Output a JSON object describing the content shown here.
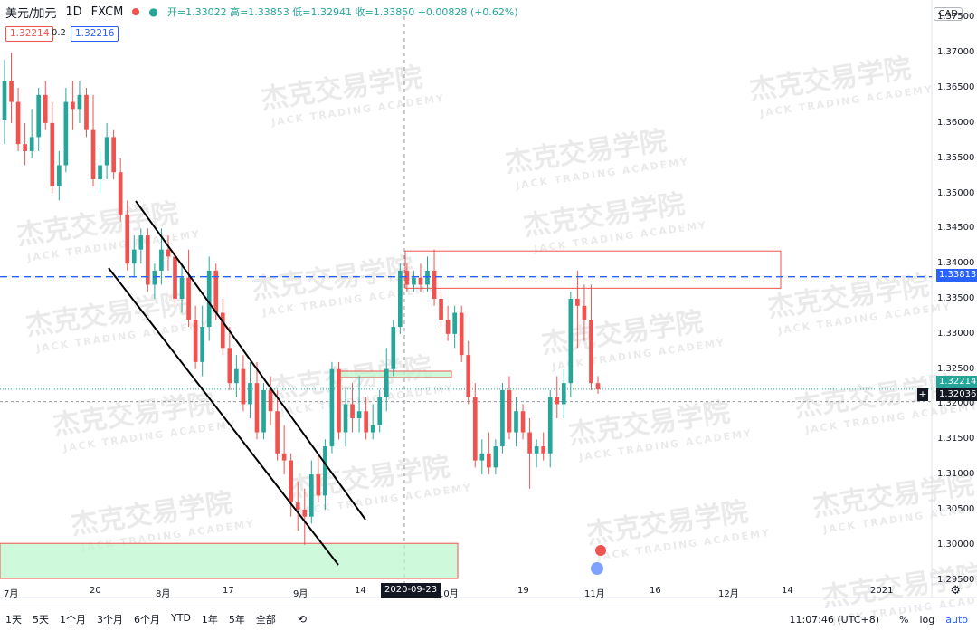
{
  "symbol": {
    "name": "美元/加元",
    "interval": "1D",
    "source": "FXCM",
    "ohlc_text": "开=1.33022 高=1.33853 低=1.32941 收=1.33850 +0.00828 (+0.62%)",
    "bid": "1.32214",
    "spread": "0.2",
    "ask": "1.32216",
    "currency": "CAD"
  },
  "price_axis": {
    "ticks": [
      "1.37500",
      "1.37000",
      "1.36500",
      "1.36000",
      "1.35500",
      "1.35000",
      "1.34500",
      "1.34000",
      "1.33500",
      "1.33000",
      "1.32500",
      "1.32000",
      "1.31500",
      "1.31000",
      "1.30500",
      "1.30000",
      "1.29500"
    ],
    "tag_resistance": "1.33813",
    "tag_last": "1.32214",
    "tag_cursor": "1.32036",
    "cursor_plus": "+"
  },
  "time_axis": {
    "ticks": [
      "7月",
      "20",
      "8月",
      "17",
      "9月",
      "14",
      "10月",
      "19",
      "11月",
      "16",
      "12月",
      "14",
      "2021"
    ],
    "date_tag": "2020-09-23"
  },
  "watermark": {
    "cn": "杰克交易学院",
    "en": "JACK TRADING ACADEMY"
  },
  "bottom_bar": {
    "timeframes": [
      "1天",
      "5天",
      "1个月",
      "3个月",
      "6个月",
      "YTD",
      "1年",
      "5年",
      "全部"
    ],
    "time": "11:07:46 (UTC+8)",
    "percent": "%",
    "log": "log",
    "auto": "auto"
  },
  "colors": {
    "up": "#26a69a",
    "down": "#ef5350",
    "resistance_line": "#2962ff",
    "zone_green": "#b9f6ca",
    "zone_red": "#ef5350"
  },
  "icons": {
    "settings": "gear-icon",
    "compare": "compare-icon",
    "status_dot": "red-dot-icon",
    "goto": "goto-icon"
  },
  "chart_data": {
    "type": "candlestick",
    "title": "美元/加元 1D FXCM",
    "ylim": [
      1.2925,
      1.3775
    ],
    "x_ticks": [
      "7月",
      "20",
      "8月",
      "17",
      "9月",
      "14",
      "10月",
      "19",
      "11月",
      "16",
      "12月",
      "14",
      "2021"
    ],
    "y_ticks": [
      1.375,
      1.37,
      1.365,
      1.36,
      1.355,
      1.35,
      1.345,
      1.34,
      1.335,
      1.33,
      1.325,
      1.32,
      1.315,
      1.31,
      1.305,
      1.3,
      1.295
    ],
    "horizontal_line": 1.33813,
    "last_price": 1.32214,
    "cursor_price": 1.32036,
    "zones": [
      {
        "type": "resistance",
        "top": 1.3418,
        "bottom": 1.3365
      },
      {
        "type": "support",
        "top": 1.3247,
        "bottom": 1.3238
      },
      {
        "type": "support",
        "top": 1.3002,
        "bottom": 1.2952
      }
    ],
    "candles": [
      {
        "o": 1.3605,
        "h": 1.369,
        "l": 1.357,
        "c": 1.366
      },
      {
        "o": 1.366,
        "h": 1.37,
        "l": 1.36,
        "c": 1.363
      },
      {
        "o": 1.363,
        "h": 1.365,
        "l": 1.356,
        "c": 1.357
      },
      {
        "o": 1.357,
        "h": 1.36,
        "l": 1.354,
        "c": 1.356
      },
      {
        "o": 1.356,
        "h": 1.362,
        "l": 1.355,
        "c": 1.358
      },
      {
        "o": 1.358,
        "h": 1.365,
        "l": 1.356,
        "c": 1.364
      },
      {
        "o": 1.364,
        "h": 1.366,
        "l": 1.359,
        "c": 1.36
      },
      {
        "o": 1.36,
        "h": 1.363,
        "l": 1.35,
        "c": 1.351
      },
      {
        "o": 1.351,
        "h": 1.356,
        "l": 1.349,
        "c": 1.354
      },
      {
        "o": 1.354,
        "h": 1.365,
        "l": 1.353,
        "c": 1.363
      },
      {
        "o": 1.363,
        "h": 1.366,
        "l": 1.359,
        "c": 1.362
      },
      {
        "o": 1.362,
        "h": 1.366,
        "l": 1.36,
        "c": 1.364
      },
      {
        "o": 1.364,
        "h": 1.365,
        "l": 1.358,
        "c": 1.359
      },
      {
        "o": 1.359,
        "h": 1.364,
        "l": 1.351,
        "c": 1.352
      },
      {
        "o": 1.352,
        "h": 1.356,
        "l": 1.35,
        "c": 1.354
      },
      {
        "o": 1.354,
        "h": 1.36,
        "l": 1.352,
        "c": 1.358
      },
      {
        "o": 1.358,
        "h": 1.359,
        "l": 1.352,
        "c": 1.353
      },
      {
        "o": 1.353,
        "h": 1.355,
        "l": 1.346,
        "c": 1.347
      },
      {
        "o": 1.347,
        "h": 1.349,
        "l": 1.339,
        "c": 1.34
      },
      {
        "o": 1.34,
        "h": 1.344,
        "l": 1.338,
        "c": 1.342
      },
      {
        "o": 1.342,
        "h": 1.345,
        "l": 1.34,
        "c": 1.344
      },
      {
        "o": 1.344,
        "h": 1.345,
        "l": 1.336,
        "c": 1.337
      },
      {
        "o": 1.337,
        "h": 1.34,
        "l": 1.335,
        "c": 1.339
      },
      {
        "o": 1.339,
        "h": 1.345,
        "l": 1.337,
        "c": 1.342
      },
      {
        "o": 1.342,
        "h": 1.344,
        "l": 1.339,
        "c": 1.341
      },
      {
        "o": 1.341,
        "h": 1.342,
        "l": 1.334,
        "c": 1.335
      },
      {
        "o": 1.335,
        "h": 1.34,
        "l": 1.333,
        "c": 1.338
      },
      {
        "o": 1.338,
        "h": 1.342,
        "l": 1.331,
        "c": 1.332
      },
      {
        "o": 1.332,
        "h": 1.334,
        "l": 1.325,
        "c": 1.326
      },
      {
        "o": 1.326,
        "h": 1.334,
        "l": 1.324,
        "c": 1.331
      },
      {
        "o": 1.331,
        "h": 1.341,
        "l": 1.329,
        "c": 1.339
      },
      {
        "o": 1.339,
        "h": 1.34,
        "l": 1.332,
        "c": 1.333
      },
      {
        "o": 1.333,
        "h": 1.335,
        "l": 1.327,
        "c": 1.328
      },
      {
        "o": 1.328,
        "h": 1.331,
        "l": 1.322,
        "c": 1.323
      },
      {
        "o": 1.323,
        "h": 1.327,
        "l": 1.321,
        "c": 1.325
      },
      {
        "o": 1.325,
        "h": 1.327,
        "l": 1.319,
        "c": 1.32
      },
      {
        "o": 1.32,
        "h": 1.326,
        "l": 1.318,
        "c": 1.323
      },
      {
        "o": 1.323,
        "h": 1.326,
        "l": 1.315,
        "c": 1.316
      },
      {
        "o": 1.316,
        "h": 1.323,
        "l": 1.315,
        "c": 1.322
      },
      {
        "o": 1.322,
        "h": 1.324,
        "l": 1.317,
        "c": 1.319
      },
      {
        "o": 1.319,
        "h": 1.322,
        "l": 1.312,
        "c": 1.313
      },
      {
        "o": 1.313,
        "h": 1.317,
        "l": 1.31,
        "c": 1.312
      },
      {
        "o": 1.312,
        "h": 1.313,
        "l": 1.304,
        "c": 1.306
      },
      {
        "o": 1.306,
        "h": 1.309,
        "l": 1.302,
        "c": 1.305
      },
      {
        "o": 1.305,
        "h": 1.308,
        "l": 1.3,
        "c": 1.304
      },
      {
        "o": 1.304,
        "h": 1.312,
        "l": 1.303,
        "c": 1.31
      },
      {
        "o": 1.31,
        "h": 1.313,
        "l": 1.306,
        "c": 1.307
      },
      {
        "o": 1.307,
        "h": 1.315,
        "l": 1.305,
        "c": 1.314
      },
      {
        "o": 1.314,
        "h": 1.326,
        "l": 1.313,
        "c": 1.325
      },
      {
        "o": 1.325,
        "h": 1.326,
        "l": 1.315,
        "c": 1.316
      },
      {
        "o": 1.316,
        "h": 1.322,
        "l": 1.314,
        "c": 1.32
      },
      {
        "o": 1.32,
        "h": 1.323,
        "l": 1.316,
        "c": 1.318
      },
      {
        "o": 1.318,
        "h": 1.324,
        "l": 1.316,
        "c": 1.319
      },
      {
        "o": 1.319,
        "h": 1.321,
        "l": 1.315,
        "c": 1.316
      },
      {
        "o": 1.316,
        "h": 1.32,
        "l": 1.315,
        "c": 1.317
      },
      {
        "o": 1.317,
        "h": 1.322,
        "l": 1.316,
        "c": 1.321
      },
      {
        "o": 1.321,
        "h": 1.328,
        "l": 1.319,
        "c": 1.325
      },
      {
        "o": 1.325,
        "h": 1.332,
        "l": 1.324,
        "c": 1.331
      },
      {
        "o": 1.331,
        "h": 1.34,
        "l": 1.33,
        "c": 1.339
      },
      {
        "o": 1.339,
        "h": 1.34,
        "l": 1.336,
        "c": 1.337
      },
      {
        "o": 1.337,
        "h": 1.339,
        "l": 1.336,
        "c": 1.338
      },
      {
        "o": 1.338,
        "h": 1.34,
        "l": 1.336,
        "c": 1.337
      },
      {
        "o": 1.337,
        "h": 1.341,
        "l": 1.336,
        "c": 1.339
      },
      {
        "o": 1.339,
        "h": 1.342,
        "l": 1.334,
        "c": 1.335
      },
      {
        "o": 1.335,
        "h": 1.336,
        "l": 1.331,
        "c": 1.332
      },
      {
        "o": 1.332,
        "h": 1.334,
        "l": 1.329,
        "c": 1.33
      },
      {
        "o": 1.33,
        "h": 1.334,
        "l": 1.328,
        "c": 1.333
      },
      {
        "o": 1.333,
        "h": 1.334,
        "l": 1.326,
        "c": 1.327
      },
      {
        "o": 1.327,
        "h": 1.329,
        "l": 1.32,
        "c": 1.321
      },
      {
        "o": 1.321,
        "h": 1.323,
        "l": 1.311,
        "c": 1.312
      },
      {
        "o": 1.312,
        "h": 1.315,
        "l": 1.31,
        "c": 1.313
      },
      {
        "o": 1.313,
        "h": 1.316,
        "l": 1.31,
        "c": 1.311
      },
      {
        "o": 1.311,
        "h": 1.315,
        "l": 1.31,
        "c": 1.314
      },
      {
        "o": 1.314,
        "h": 1.323,
        "l": 1.313,
        "c": 1.322
      },
      {
        "o": 1.322,
        "h": 1.324,
        "l": 1.315,
        "c": 1.316
      },
      {
        "o": 1.316,
        "h": 1.321,
        "l": 1.314,
        "c": 1.319
      },
      {
        "o": 1.319,
        "h": 1.32,
        "l": 1.315,
        "c": 1.316
      },
      {
        "o": 1.316,
        "h": 1.318,
        "l": 1.308,
        "c": 1.313
      },
      {
        "o": 1.313,
        "h": 1.315,
        "l": 1.311,
        "c": 1.314
      },
      {
        "o": 1.314,
        "h": 1.316,
        "l": 1.312,
        "c": 1.313
      },
      {
        "o": 1.313,
        "h": 1.322,
        "l": 1.311,
        "c": 1.321
      },
      {
        "o": 1.321,
        "h": 1.324,
        "l": 1.318,
        "c": 1.32
      },
      {
        "o": 1.32,
        "h": 1.325,
        "l": 1.318,
        "c": 1.323
      },
      {
        "o": 1.323,
        "h": 1.336,
        "l": 1.321,
        "c": 1.335
      },
      {
        "o": 1.335,
        "h": 1.339,
        "l": 1.328,
        "c": 1.334
      },
      {
        "o": 1.334,
        "h": 1.337,
        "l": 1.329,
        "c": 1.332
      },
      {
        "o": 1.332,
        "h": 1.337,
        "l": 1.322,
        "c": 1.323
      },
      {
        "o": 1.323,
        "h": 1.324,
        "l": 1.3215,
        "c": 1.3221
      }
    ]
  }
}
